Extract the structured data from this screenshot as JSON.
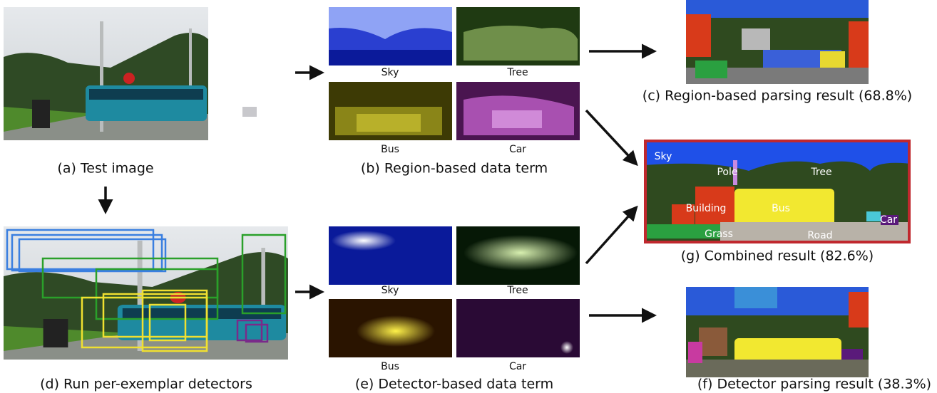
{
  "test_image": {
    "caption": "(a) Test image"
  },
  "region_data_term": {
    "caption": "(b) Region-based data term",
    "labels": [
      "Sky",
      "Tree",
      "Bus",
      "Car"
    ]
  },
  "region_result": {
    "caption": "(c) Region-based parsing result (68.8%)"
  },
  "detectors": {
    "caption": "(d) Run per-exemplar detectors"
  },
  "detector_data_term": {
    "caption": "(e) Detector-based data term",
    "labels": [
      "Sky",
      "Tree",
      "Bus",
      "Car"
    ]
  },
  "detector_result": {
    "caption": "(f) Detector parsing result (38.3%)"
  },
  "combined_result": {
    "caption": "(g) Combined result (82.6%)",
    "labels": [
      "Sky",
      "Pole",
      "Tree",
      "Building",
      "Bus",
      "Car",
      "Grass",
      "Road"
    ]
  }
}
